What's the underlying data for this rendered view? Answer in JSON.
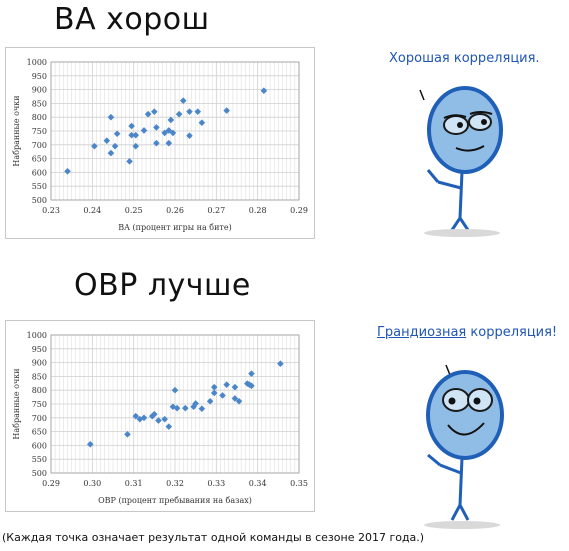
{
  "panels": {
    "ba": {
      "heading": "BA хорош",
      "quote": "Хорошая корреляция."
    },
    "obp": {
      "heading": "OBP лучше",
      "quote_emph": "Грандиозная",
      "quote_rest": " корреляция!"
    }
  },
  "footnote": "(Каждая точка означает результат одной команды в сезоне 2017 года.)",
  "colors": {
    "marker": "#4a86c8",
    "grid": "#cfcfcf",
    "quote": "#1f55b4"
  },
  "chart_data": [
    {
      "type": "scatter",
      "xlabel": "BA (процент игры на бите)",
      "ylabel": "Набранные очки",
      "xlim": [
        0.23,
        0.29
      ],
      "ylim": [
        500,
        1000
      ],
      "xticks": [
        "0.23",
        "0.24",
        "0.25",
        "0.26",
        "0.27",
        "0.28",
        "0.29"
      ],
      "yticks": [
        "500",
        "550",
        "600",
        "650",
        "700",
        "750",
        "800",
        "850",
        "900",
        "950",
        "1000"
      ],
      "grid": true,
      "points": [
        [
          0.234,
          604
        ],
        [
          0.2405,
          695
        ],
        [
          0.2435,
          715
        ],
        [
          0.2445,
          670
        ],
        [
          0.2445,
          800
        ],
        [
          0.2455,
          695
        ],
        [
          0.246,
          740
        ],
        [
          0.249,
          640
        ],
        [
          0.2495,
          735
        ],
        [
          0.2495,
          768
        ],
        [
          0.2505,
          695
        ],
        [
          0.2505,
          735
        ],
        [
          0.2525,
          752
        ],
        [
          0.2535,
          811
        ],
        [
          0.255,
          820
        ],
        [
          0.2555,
          706
        ],
        [
          0.2555,
          763
        ],
        [
          0.2575,
          743
        ],
        [
          0.2585,
          706
        ],
        [
          0.2585,
          752
        ],
        [
          0.2595,
          743
        ],
        [
          0.259,
          790
        ],
        [
          0.261,
          811
        ],
        [
          0.262,
          860
        ],
        [
          0.2635,
          733
        ],
        [
          0.2635,
          820
        ],
        [
          0.2655,
          820
        ],
        [
          0.2665,
          780
        ],
        [
          0.2725,
          824
        ],
        [
          0.2815,
          896
        ]
      ]
    },
    {
      "type": "scatter",
      "xlabel": "OBP (процент пребывания на базах)",
      "ylabel": "Набранные очки",
      "xlim": [
        0.29,
        0.35
      ],
      "ylim": [
        500,
        1000
      ],
      "xticks": [
        "0.29",
        "0.30",
        "0.31",
        "0.32",
        "0.33",
        "0.34",
        "0.35"
      ],
      "yticks": [
        "500",
        "550",
        "600",
        "650",
        "700",
        "750",
        "800",
        "850",
        "900",
        "950",
        "1000"
      ],
      "grid": true,
      "points": [
        [
          0.2995,
          604
        ],
        [
          0.3085,
          640
        ],
        [
          0.3105,
          706
        ],
        [
          0.3115,
          695
        ],
        [
          0.3125,
          700
        ],
        [
          0.3145,
          706
        ],
        [
          0.315,
          713
        ],
        [
          0.316,
          690
        ],
        [
          0.3175,
          695
        ],
        [
          0.3185,
          668
        ],
        [
          0.3195,
          740
        ],
        [
          0.32,
          800
        ],
        [
          0.3205,
          735
        ],
        [
          0.3225,
          735
        ],
        [
          0.3245,
          740
        ],
        [
          0.325,
          752
        ],
        [
          0.3265,
          733
        ],
        [
          0.3285,
          760
        ],
        [
          0.3295,
          790
        ],
        [
          0.3295,
          811
        ],
        [
          0.3315,
          781
        ],
        [
          0.3325,
          820
        ],
        [
          0.3345,
          770
        ],
        [
          0.3345,
          811
        ],
        [
          0.3355,
          760
        ],
        [
          0.3375,
          824
        ],
        [
          0.338,
          820
        ],
        [
          0.3385,
          860
        ],
        [
          0.3385,
          816
        ],
        [
          0.3455,
          896
        ]
      ]
    }
  ]
}
